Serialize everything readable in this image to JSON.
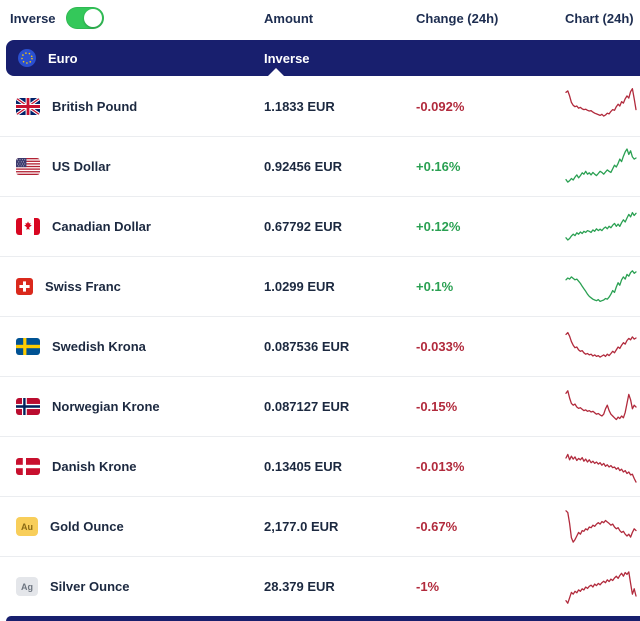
{
  "topbar": {
    "inverse_label": "Inverse",
    "toggle_state": "on",
    "columns": [
      "Amount",
      "Change (24h)",
      "Chart (24h)"
    ]
  },
  "section": {
    "currency": "Euro",
    "column_label": "Inverse",
    "flag": "eu-flag-icon"
  },
  "colors": {
    "navy": "#181f6e",
    "up_green": "#2aa052",
    "down_red": "#b12a3c",
    "toggle_green": "#34c85a"
  },
  "rows": [
    {
      "name": "British Pound",
      "flag": "gb",
      "amount": "1.1833 EUR",
      "change": "-0.092%",
      "trend": "down",
      "spark": [
        88,
        92,
        78,
        60,
        52,
        48,
        50,
        44,
        46,
        42,
        40,
        41,
        38,
        36,
        37,
        33,
        30,
        28,
        26,
        24,
        27,
        22,
        25,
        30,
        28,
        35,
        40,
        38,
        48,
        55,
        50,
        62,
        58,
        70,
        78,
        72,
        90,
        98,
        70,
        40
      ]
    },
    {
      "name": "US Dollar",
      "flag": "us",
      "amount": "0.92456 EUR",
      "change": "+0.16%",
      "trend": "up",
      "spark": [
        15,
        8,
        12,
        18,
        14,
        22,
        28,
        20,
        26,
        34,
        30,
        38,
        30,
        34,
        28,
        35,
        30,
        26,
        32,
        38,
        35,
        30,
        36,
        42,
        38,
        35,
        45,
        55,
        50,
        60,
        72,
        65,
        80,
        92,
        100,
        85,
        95,
        78,
        72,
        75
      ]
    },
    {
      "name": "Canadian Dollar",
      "flag": "ca",
      "amount": "0.67792 EUR",
      "change": "+0.12%",
      "trend": "up",
      "spark": [
        20,
        14,
        18,
        25,
        30,
        26,
        34,
        30,
        36,
        32,
        38,
        35,
        40,
        38,
        35,
        42,
        38,
        45,
        40,
        44,
        40,
        46,
        50,
        45,
        52,
        48,
        55,
        60,
        52,
        58,
        52,
        62,
        70,
        64,
        75,
        85,
        78,
        90,
        82,
        88
      ]
    },
    {
      "name": "Swiss Franc",
      "flag": "ch",
      "amount": "1.0299 EUR",
      "change": "+0.1%",
      "trend": "up",
      "spark": [
        70,
        75,
        72,
        78,
        74,
        70,
        72,
        66,
        60,
        52,
        45,
        38,
        30,
        24,
        20,
        16,
        14,
        12,
        15,
        10,
        12,
        14,
        18,
        16,
        22,
        30,
        40,
        35,
        50,
        62,
        55,
        70,
        78,
        72,
        85,
        80,
        90,
        95,
        88,
        92
      ]
    },
    {
      "name": "Swedish Krona",
      "flag": "se",
      "amount": "0.087536 EUR",
      "change": "-0.033%",
      "trend": "down",
      "spark": [
        85,
        90,
        80,
        65,
        55,
        48,
        50,
        42,
        38,
        40,
        34,
        30,
        32,
        28,
        30,
        25,
        28,
        24,
        26,
        22,
        25,
        28,
        24,
        30,
        26,
        32,
        38,
        34,
        42,
        50,
        46,
        55,
        62,
        58,
        68,
        74,
        70,
        78,
        72,
        75
      ]
    },
    {
      "name": "Norwegian Krone",
      "flag": "no",
      "amount": "0.087127 EUR",
      "change": "-0.15%",
      "trend": "down",
      "spark": [
        88,
        95,
        75,
        60,
        55,
        58,
        50,
        46,
        48,
        44,
        40,
        42,
        38,
        40,
        36,
        38,
        34,
        30,
        32,
        28,
        25,
        30,
        45,
        55,
        40,
        30,
        25,
        20,
        15,
        22,
        18,
        25,
        20,
        35,
        60,
        85,
        70,
        45,
        55,
        50
      ]
    },
    {
      "name": "Danish Krone",
      "flag": "dk",
      "amount": "0.13405 EUR",
      "change": "-0.013%",
      "trend": "down",
      "spark": [
        75,
        85,
        70,
        80,
        72,
        78,
        68,
        74,
        70,
        76,
        66,
        72,
        64,
        70,
        62,
        66,
        60,
        64,
        58,
        62,
        55,
        60,
        52,
        56,
        50,
        54,
        48,
        50,
        44,
        48,
        40,
        44,
        36,
        40,
        32,
        36,
        28,
        30,
        18,
        8
      ]
    },
    {
      "name": "Gold Ounce",
      "badge": "Au",
      "amount": "2,177.0 EUR",
      "change": "-0.67%",
      "trend": "down",
      "spark": [
        95,
        90,
        60,
        20,
        8,
        15,
        25,
        35,
        30,
        40,
        38,
        45,
        42,
        50,
        48,
        55,
        52,
        58,
        62,
        58,
        65,
        62,
        68,
        64,
        60,
        55,
        58,
        50,
        45,
        48,
        40,
        35,
        38,
        30,
        25,
        30,
        22,
        35,
        45,
        40
      ]
    },
    {
      "name": "Silver Ounce",
      "badge": "Ag",
      "amount": "28.379 EUR",
      "change": "-1%",
      "trend": "down",
      "spark": [
        12,
        5,
        20,
        35,
        30,
        38,
        34,
        42,
        38,
        45,
        42,
        50,
        46,
        52,
        55,
        50,
        58,
        54,
        60,
        56,
        62,
        66,
        62,
        70,
        65,
        72,
        68,
        75,
        80,
        74,
        82,
        88,
        80,
        90,
        85,
        92,
        60,
        30,
        45,
        25
      ]
    }
  ]
}
